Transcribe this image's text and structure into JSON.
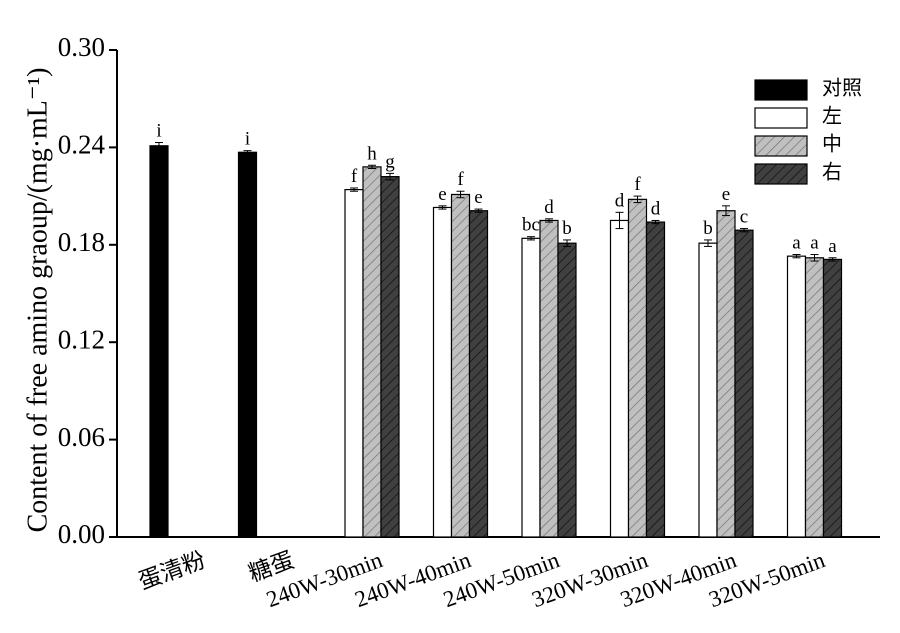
{
  "chart_data": {
    "type": "bar",
    "ylabel": "Content of free amino graoup/(mg·mL⁻¹)",
    "categories": [
      "蛋清粉",
      "糖蛋",
      "240W-30min",
      "240W-40min",
      "240W-50min",
      "320W-30min",
      "320W-40min",
      "320W-50min"
    ],
    "series": [
      {
        "name": "对照",
        "color": "#000000",
        "hatch": false,
        "values": [
          0.241,
          0.237,
          null,
          null,
          null,
          null,
          null,
          null
        ],
        "errors": [
          0.002,
          0.001,
          null,
          null,
          null,
          null,
          null,
          null
        ],
        "letters": [
          "i",
          "i",
          null,
          null,
          null,
          null,
          null,
          null
        ]
      },
      {
        "name": "左",
        "color": "#ffffff",
        "hatch": false,
        "values": [
          null,
          null,
          0.214,
          0.203,
          0.184,
          0.195,
          0.181,
          0.173
        ],
        "errors": [
          null,
          null,
          0.001,
          0.001,
          0.001,
          0.005,
          0.002,
          0.001
        ],
        "letters": [
          null,
          null,
          "f",
          "e",
          "bc",
          "d",
          "b",
          "a"
        ]
      },
      {
        "name": "中",
        "color": "#c0c0c0",
        "hatch": true,
        "values": [
          null,
          null,
          0.228,
          0.211,
          0.195,
          0.208,
          0.201,
          0.172
        ],
        "errors": [
          null,
          null,
          0.001,
          0.002,
          0.001,
          0.002,
          0.003,
          0.002
        ],
        "letters": [
          null,
          null,
          "h",
          "f",
          "d",
          "f",
          "e",
          "a"
        ]
      },
      {
        "name": "右",
        "color": "#404040",
        "hatch": true,
        "values": [
          null,
          null,
          0.222,
          0.201,
          0.181,
          0.194,
          0.189,
          0.171
        ],
        "errors": [
          null,
          null,
          0.002,
          0.001,
          0.002,
          0.001,
          0.001,
          0.001
        ],
        "letters": [
          null,
          null,
          "g",
          "e",
          "b",
          "d",
          "c",
          "a"
        ]
      }
    ],
    "ylim": [
      0,
      0.3
    ],
    "yticks": [
      {
        "value": 0,
        "label": "0.00"
      },
      {
        "value": 0.06,
        "label": "0.06"
      },
      {
        "value": 0.12,
        "label": "0.12"
      },
      {
        "value": 0.18,
        "label": "0.18"
      },
      {
        "value": 0.24,
        "label": "0.24"
      },
      {
        "value": 0.3,
        "label": "0.30"
      }
    ],
    "legend": "upper right"
  }
}
